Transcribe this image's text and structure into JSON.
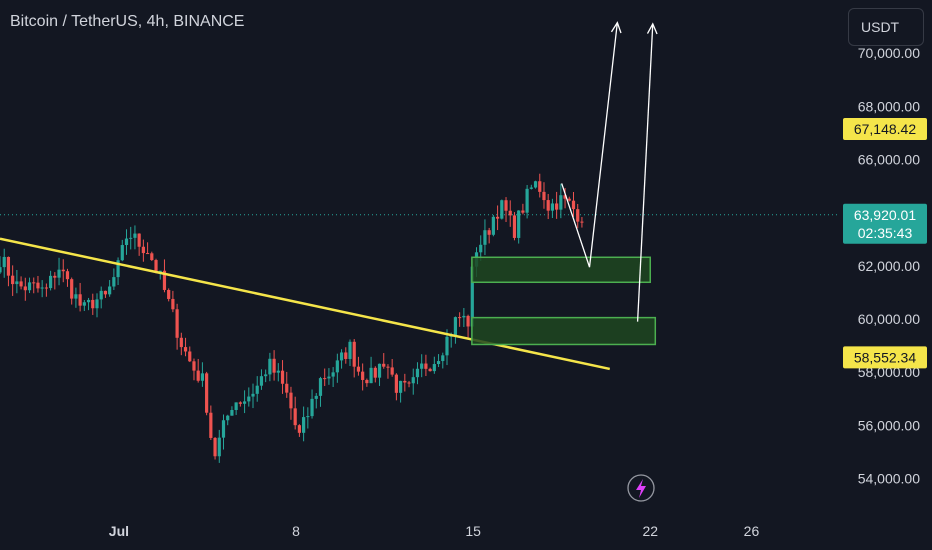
{
  "header": {
    "title": "Bitcoin / TetherUS, 4h, BINANCE"
  },
  "toolbar": {
    "currency": "USDT"
  },
  "colors": {
    "background": "#131722",
    "up": "#26a69a",
    "down": "#ef5350",
    "trendline": "#f5e54a",
    "zone_fill": "#1e4620",
    "zone_border": "#4caf50",
    "arrow": "#ffffff",
    "price_line": "#26a69a",
    "label_yellow": "#f5e54a",
    "label_green": "#26a69a"
  },
  "chart_data": {
    "type": "candlestick",
    "y_ticks": [
      {
        "value": 70000,
        "label": "70,000.00"
      },
      {
        "value": 68000,
        "label": "68,000.00"
      },
      {
        "value": 66000,
        "label": "66,000.00"
      },
      {
        "value": 62000,
        "label": "62,000.00"
      },
      {
        "value": 60000,
        "label": "60,000.00"
      },
      {
        "value": 58000,
        "label": "58,000.00"
      },
      {
        "value": 56000,
        "label": "56,000.00"
      },
      {
        "value": 54000,
        "label": "54,000.00"
      }
    ],
    "x_ticks": [
      {
        "day": 1,
        "label": "Jul"
      },
      {
        "day": 8,
        "label": "8"
      },
      {
        "day": 15,
        "label": "15"
      },
      {
        "day": 22,
        "label": "22"
      },
      {
        "day": 26,
        "label": "26"
      }
    ],
    "ylim": [
      53000,
      72000
    ],
    "xlim": [
      -3.7,
      29.5
    ],
    "price_labels": [
      {
        "value": 67148.42,
        "text": "67,148.42",
        "style": "yellow"
      },
      {
        "value": 63920.01,
        "text": "63,920.01",
        "subtext": "02:35:43",
        "style": "green"
      },
      {
        "value": 58552.34,
        "text": "58,552.34",
        "style": "yellow"
      }
    ],
    "current_price": 63920.01,
    "trendline": {
      "from": [
        -3.7,
        63020
      ],
      "to": [
        20.4,
        58120
      ]
    },
    "zones": [
      {
        "x_from": 14.95,
        "x_to": 22.0,
        "y_from": 61380,
        "y_to": 62320
      },
      {
        "x_from": 14.95,
        "x_to": 22.2,
        "y_from": 59040,
        "y_to": 60050
      }
    ],
    "arrows": [
      {
        "points": [
          [
            18.5,
            65100
          ],
          [
            19.6,
            61950
          ],
          [
            20.7,
            71150
          ]
        ]
      },
      {
        "points": [
          [
            21.5,
            59900
          ],
          [
            22.1,
            71100
          ]
        ]
      }
    ],
    "anchor_points": [
      [
        -3.7,
        62300
      ],
      [
        -3.0,
        61200
      ],
      [
        -2.4,
        61200
      ],
      [
        -1.9,
        61000
      ],
      [
        -1.4,
        62000
      ],
      [
        -1.0,
        61300
      ],
      [
        -0.4,
        60300
      ],
      [
        0.0,
        60700
      ],
      [
        0.5,
        60800
      ],
      [
        1.0,
        62000
      ],
      [
        1.35,
        63300
      ],
      [
        1.7,
        62900
      ],
      [
        2.15,
        62600
      ],
      [
        2.6,
        61600
      ],
      [
        3.0,
        60500
      ],
      [
        3.5,
        59000
      ],
      [
        3.9,
        58200
      ],
      [
        4.35,
        57600
      ],
      [
        4.75,
        54800
      ],
      [
        5.1,
        55800
      ],
      [
        5.5,
        56900
      ],
      [
        6.0,
        57000
      ],
      [
        6.5,
        57500
      ],
      [
        6.9,
        58300
      ],
      [
        7.3,
        57800
      ],
      [
        7.7,
        57000
      ],
      [
        8.1,
        55500
      ],
      [
        8.5,
        56500
      ],
      [
        9.0,
        57800
      ],
      [
        9.4,
        58000
      ],
      [
        9.7,
        58300
      ],
      [
        10.1,
        59000
      ],
      [
        10.5,
        58000
      ],
      [
        11.0,
        57800
      ],
      [
        11.5,
        58500
      ],
      [
        12.0,
        57400
      ],
      [
        12.5,
        57300
      ],
      [
        13.0,
        58200
      ],
      [
        13.5,
        58500
      ],
      [
        14.0,
        59300
      ],
      [
        14.4,
        60100
      ],
      [
        14.8,
        59900
      ],
      [
        15.05,
        62600
      ],
      [
        15.5,
        63100
      ],
      [
        15.9,
        64100
      ],
      [
        16.2,
        64200
      ],
      [
        16.6,
        63300
      ],
      [
        17.0,
        64300
      ],
      [
        17.4,
        65100
      ],
      [
        17.7,
        64900
      ],
      [
        18.0,
        64200
      ],
      [
        18.4,
        64500
      ],
      [
        18.8,
        64300
      ],
      [
        19.1,
        64000
      ],
      [
        19.4,
        63900
      ]
    ]
  }
}
